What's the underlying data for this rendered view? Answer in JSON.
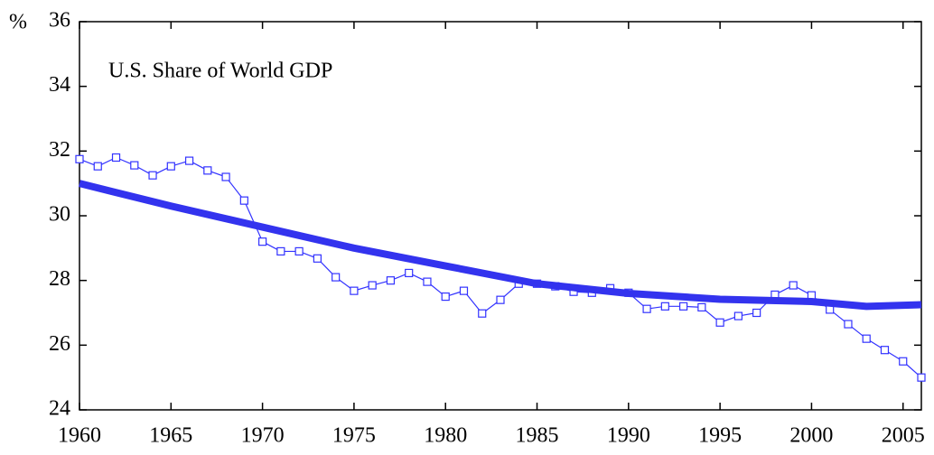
{
  "chart_data": {
    "type": "line",
    "title": "U.S. Share of World GDP",
    "y_label": "%",
    "xlim": [
      1960,
      2006
    ],
    "xticks": [
      1960,
      1965,
      1970,
      1975,
      1980,
      1985,
      1990,
      1995,
      2000,
      2005
    ],
    "ylim": [
      24,
      36
    ],
    "yticks": [
      24,
      26,
      28,
      30,
      32,
      34,
      36
    ],
    "grid": false,
    "series": [
      {
        "color": "#3333ff",
        "marker": "square",
        "x": [
          1960,
          1961,
          1962,
          1963,
          1964,
          1965,
          1966,
          1967,
          1968,
          1969,
          1970,
          1971,
          1972,
          1973,
          1974,
          1975,
          1976,
          1977,
          1978,
          1979,
          1980,
          1981,
          1982,
          1983,
          1984,
          1985,
          1986,
          1987,
          1988,
          1989,
          1990,
          1991,
          1992,
          1993,
          1994,
          1995,
          1996,
          1997,
          1998,
          1999,
          2000,
          2001,
          2002,
          2003,
          2004,
          2005,
          2006
        ],
        "values": [
          31.75,
          31.53,
          31.8,
          31.56,
          31.25,
          31.53,
          31.7,
          31.4,
          31.2,
          30.47,
          29.2,
          28.9,
          28.9,
          28.68,
          28.1,
          27.68,
          27.85,
          28.0,
          28.23,
          27.96,
          27.5,
          27.68,
          26.98,
          27.4,
          27.9,
          27.9,
          27.82,
          27.65,
          27.62,
          27.76,
          27.62,
          27.12,
          27.2,
          27.2,
          27.17,
          26.7,
          26.9,
          27.0,
          27.56,
          27.85,
          27.54,
          27.1,
          26.65,
          26.2,
          25.85,
          25.5,
          25.0
        ]
      },
      {
        "color": "#3333ee",
        "marker": "none",
        "x": [
          1960,
          1965,
          1970,
          1975,
          1980,
          1985,
          1990,
          1995,
          2000,
          2003,
          2006
        ],
        "values": [
          31.0,
          30.3,
          29.65,
          29.0,
          28.45,
          27.9,
          27.6,
          27.42,
          27.35,
          27.2,
          27.25
        ]
      }
    ]
  }
}
